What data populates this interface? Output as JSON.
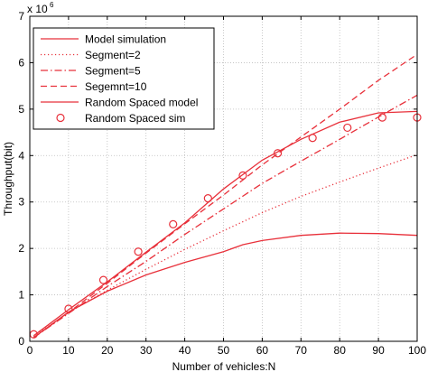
{
  "chart_data": {
    "type": "line",
    "title": "",
    "xlabel": "Number of vehicles:N",
    "ylabel": "Throughput(bit)",
    "y_multiplier_label": "x 10",
    "y_multiplier_exponent": "6",
    "xlim": [
      0,
      100
    ],
    "ylim": [
      0,
      7
    ],
    "x_ticks": [
      0,
      10,
      20,
      30,
      40,
      50,
      60,
      70,
      80,
      90,
      100
    ],
    "y_ticks": [
      0,
      1,
      2,
      3,
      4,
      5,
      6,
      7
    ],
    "grid": true,
    "legend_position": "top-left",
    "color": "#e8303a",
    "series": [
      {
        "name": "Model simulation",
        "style": "solid",
        "x": [
          1,
          10,
          20,
          30,
          40,
          50,
          55,
          60,
          70,
          80,
          90,
          100
        ],
        "y": [
          0.08,
          0.63,
          1.08,
          1.43,
          1.7,
          1.93,
          2.08,
          2.17,
          2.28,
          2.33,
          2.32,
          2.28
        ]
      },
      {
        "name": "Segment=2",
        "style": "dotted",
        "x": [
          1,
          10,
          20,
          30,
          40,
          50,
          60,
          70,
          80,
          90,
          100
        ],
        "y": [
          0.1,
          0.62,
          1.1,
          1.55,
          1.98,
          2.38,
          2.77,
          3.12,
          3.43,
          3.73,
          4.02
        ]
      },
      {
        "name": "Segment=5",
        "style": "dashdot",
        "x": [
          1,
          10,
          20,
          30,
          40,
          50,
          60,
          70,
          80,
          90,
          100
        ],
        "y": [
          0.08,
          0.6,
          1.18,
          1.72,
          2.3,
          2.85,
          3.4,
          3.88,
          4.35,
          4.83,
          5.3
        ]
      },
      {
        "name": "Segemnt=10",
        "style": "dashed",
        "x": [
          1,
          10,
          20,
          30,
          40,
          50,
          60,
          70,
          80,
          90,
          100
        ],
        "y": [
          0.08,
          0.62,
          1.25,
          1.9,
          2.53,
          3.15,
          3.8,
          4.4,
          5.0,
          5.62,
          6.18
        ]
      },
      {
        "name": "Random Spaced model",
        "style": "solid",
        "x": [
          1,
          10,
          20,
          30,
          40,
          50,
          60,
          70,
          80,
          90,
          100
        ],
        "y": [
          0.12,
          0.68,
          1.28,
          1.92,
          2.55,
          3.28,
          3.9,
          4.35,
          4.72,
          4.92,
          4.95
        ]
      },
      {
        "name": "Random Spaced sim",
        "style": "markers",
        "x": [
          1,
          10,
          19,
          28,
          37,
          46,
          55,
          64,
          73,
          82,
          91,
          100
        ],
        "y": [
          0.15,
          0.7,
          1.32,
          1.93,
          2.52,
          3.08,
          3.57,
          4.05,
          4.38,
          4.6,
          4.82,
          4.82
        ]
      }
    ]
  }
}
